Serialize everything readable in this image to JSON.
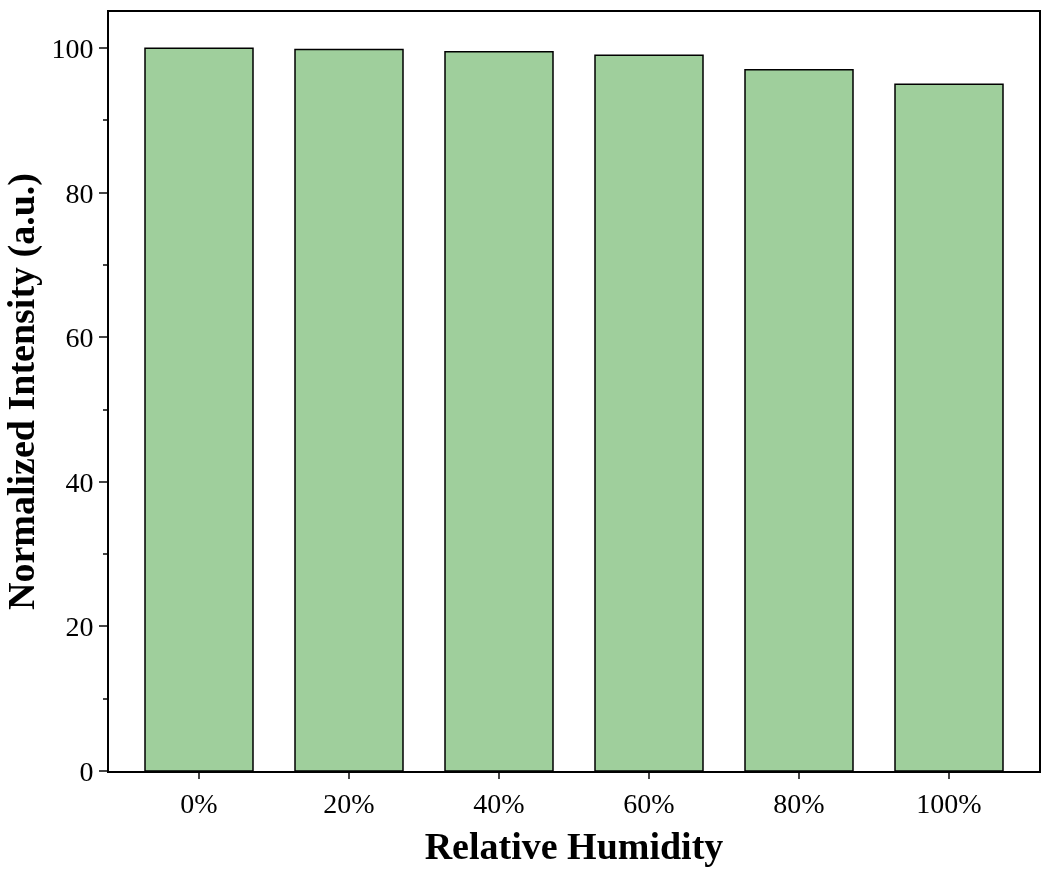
{
  "chart_data": {
    "type": "bar",
    "xlabel": "Relative Humidity",
    "ylabel": "Normalized Intensity (a.u.)",
    "categories": [
      "0%",
      "20%",
      "40%",
      "60%",
      "80%",
      "100%"
    ],
    "values": [
      100,
      99.8,
      99.5,
      99.0,
      97.0,
      95.0
    ],
    "color": "#9fcf9c",
    "ylim": [
      0,
      105
    ],
    "yticks": [
      0,
      20,
      40,
      60,
      80,
      100
    ]
  }
}
